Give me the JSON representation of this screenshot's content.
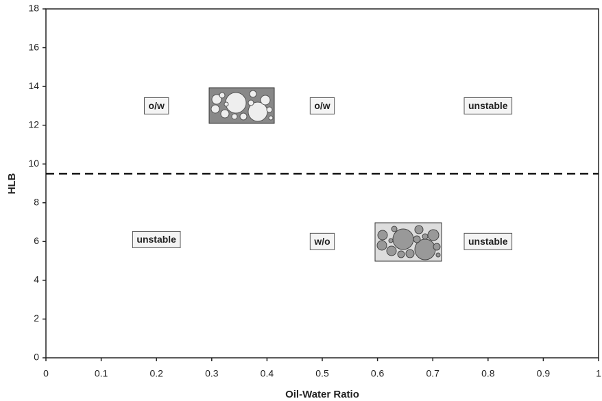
{
  "chart_data": {
    "type": "region-map",
    "xlabel": "Oil-Water Ratio",
    "ylabel": "HLB",
    "xlim": [
      0,
      1
    ],
    "ylim": [
      0,
      18
    ],
    "xticks": [
      0,
      0.1,
      0.2,
      0.3,
      0.4,
      0.5,
      0.6,
      0.7,
      0.8,
      0.9,
      1
    ],
    "yticks": [
      0,
      2,
      4,
      6,
      8,
      10,
      12,
      14,
      16,
      18
    ],
    "hline": 9.5,
    "annotations": [
      {
        "text": "o/w",
        "x": 0.2,
        "y": 13
      },
      {
        "text": "o/w",
        "x": 0.5,
        "y": 13
      },
      {
        "text": "unstable",
        "x": 0.8,
        "y": 13
      },
      {
        "text": "unstable",
        "x": 0.2,
        "y": 6.1
      },
      {
        "text": "w/o",
        "x": 0.5,
        "y": 6
      },
      {
        "text": "unstable",
        "x": 0.8,
        "y": 6
      }
    ]
  }
}
